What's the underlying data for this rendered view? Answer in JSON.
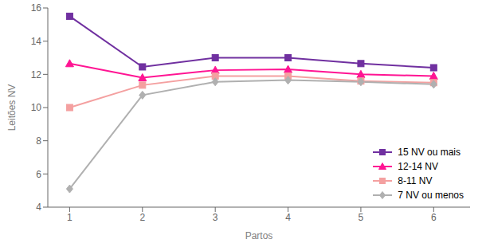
{
  "chart_data": {
    "type": "line",
    "xlabel": "Partos",
    "ylabel": "Leitões NV",
    "x": [
      1,
      2,
      3,
      4,
      5,
      6
    ],
    "series": [
      {
        "name": "15 NV ou mais",
        "color": "#7030A0",
        "marker": "square",
        "values": [
          15.5,
          12.45,
          13.0,
          13.0,
          12.65,
          12.4
        ]
      },
      {
        "name": "12-14 NV",
        "color": "#FF1493",
        "marker": "triangle",
        "values": [
          12.65,
          11.8,
          12.25,
          12.3,
          12.0,
          11.9
        ]
      },
      {
        "name": "8-11 NV",
        "color": "#F4A0A0",
        "marker": "square",
        "values": [
          10.0,
          11.35,
          11.9,
          11.9,
          11.6,
          11.5
        ]
      },
      {
        "name": "7 NV ou menos",
        "color": "#B0B0B0",
        "marker": "diamond",
        "values": [
          5.1,
          10.75,
          11.55,
          11.65,
          11.55,
          11.4
        ]
      }
    ],
    "xlim": [
      0.7,
      6.5
    ],
    "xticks": [
      1,
      2,
      3,
      4,
      5,
      6
    ],
    "ylim": [
      4,
      16
    ],
    "yticks": [
      4,
      6,
      8,
      10,
      12,
      14,
      16
    ],
    "grid": false,
    "legend": "lower right"
  }
}
